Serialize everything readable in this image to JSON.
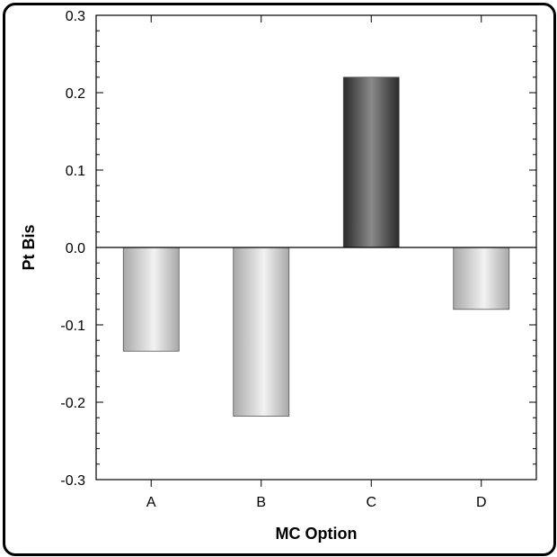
{
  "chart_data": {
    "type": "bar",
    "title": "",
    "xlabel": "MC Option",
    "ylabel": "Pt Bis",
    "categories": [
      "A",
      "B",
      "C",
      "D"
    ],
    "values": [
      -0.134,
      -0.218,
      0.22,
      -0.08
    ],
    "ylim": [
      -0.3,
      0.3
    ],
    "yticks": [
      -0.3,
      -0.2,
      -0.1,
      0.0,
      0.1,
      0.2,
      0.3
    ],
    "ytick_labels": [
      "-0.3",
      "-0.2",
      "-0.1",
      "0.0",
      "0.1",
      "0.2",
      "0.3"
    ],
    "grid": false,
    "legend": "none",
    "colors": {
      "highlight_dark": "#2a2a2a",
      "highlight_light": "#8a8a8a",
      "normal_dark": "#a8a8a8",
      "normal_light": "#f2f2f2"
    },
    "highlight_category": "C"
  }
}
